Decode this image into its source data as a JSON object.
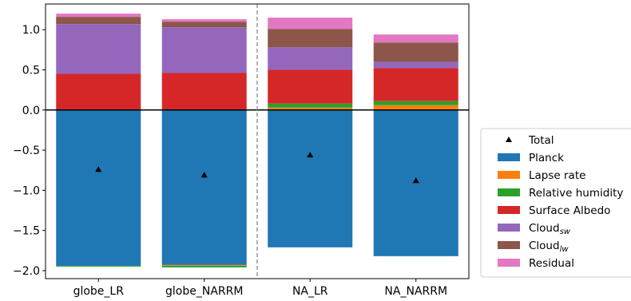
{
  "chart_data": {
    "type": "bar",
    "stacked": true,
    "categories": [
      "globe_LR",
      "globe_NARRM",
      "NA_LR",
      "NA_NARRM"
    ],
    "ylim": [
      -2.1,
      1.32
    ],
    "yticks": [
      1.0,
      0.5,
      0.0,
      -0.5,
      -1.0,
      -1.5,
      -2.0
    ],
    "ytick_labels": [
      "1.0",
      "0.5",
      "0.0",
      "−0.5",
      "−1.0",
      "−1.5",
      "−2.0"
    ],
    "divider_after_category": 1,
    "zero_line": true,
    "legend_position": "outside-right",
    "series": [
      {
        "name": "Planck",
        "color": "#1f77b4",
        "values": [
          -1.94,
          -1.93,
          -1.71,
          -1.82
        ]
      },
      {
        "name": "Lapse rate",
        "color": "#ff7f0e",
        "values": [
          0.0,
          -0.01,
          0.03,
          0.06
        ]
      },
      {
        "name": "Relative humidity",
        "color": "#2ca02c",
        "values": [
          -0.01,
          -0.02,
          0.05,
          0.05
        ]
      },
      {
        "name": "Surface Albedo",
        "color": "#d62728",
        "values": [
          0.45,
          0.46,
          0.42,
          0.41
        ]
      },
      {
        "name": "Cloud_sw",
        "label_base": "Cloud",
        "label_sub": "sw",
        "color": "#9467bd",
        "values": [
          0.62,
          0.57,
          0.28,
          0.08
        ]
      },
      {
        "name": "Cloud_lw",
        "label_base": "Cloud",
        "label_sub": "lw",
        "color": "#8c564b",
        "values": [
          0.09,
          0.07,
          0.23,
          0.24
        ]
      },
      {
        "name": "Residual",
        "color": "#e377c2",
        "values": [
          0.04,
          0.03,
          0.14,
          0.1
        ]
      }
    ],
    "total": {
      "name": "Total",
      "values": [
        -0.74,
        -0.81,
        -0.56,
        -0.88
      ]
    }
  }
}
